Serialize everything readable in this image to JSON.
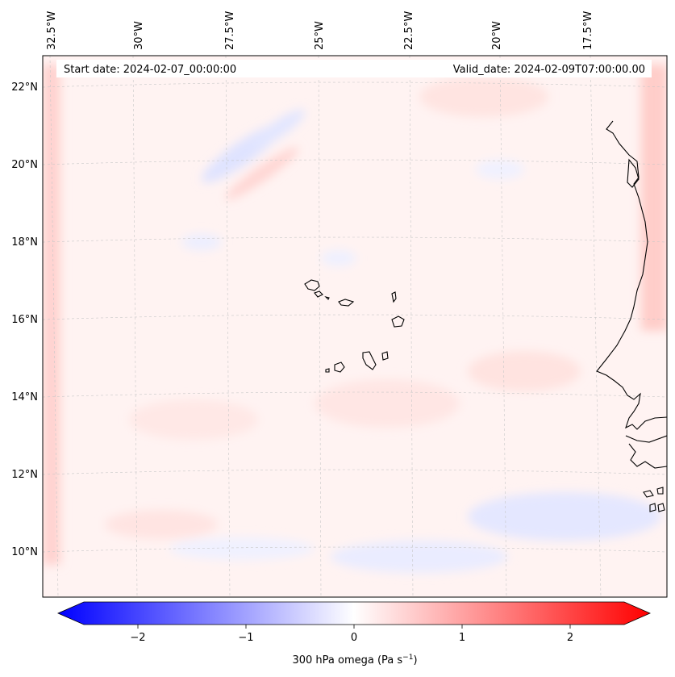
{
  "header": {
    "start_date": "Start date: 2024-02-07_00:00:00",
    "valid_date": "Valid_date: 2024-02-09T07:00:00.00"
  },
  "axes": {
    "longitude_labels": [
      "32.5°W",
      "30°W",
      "27.5°W",
      "25°W",
      "22.5°W",
      "20°W",
      "17.5°W"
    ],
    "latitude_labels": [
      "22°N",
      "20°N",
      "18°N",
      "16°N",
      "14°N",
      "12°N",
      "10°N"
    ]
  },
  "colorbar": {
    "label_main": "300 hPa omega (Pa s",
    "label_exp": "−1",
    "label_close": ")",
    "ticks": [
      "−2",
      "−1",
      "0",
      "1",
      "2"
    ],
    "min_color": "#0000ff",
    "mid_color": "#ffffff",
    "max_color": "#ff0000"
  },
  "chart_data": {
    "type": "heatmap",
    "variable": "300 hPa omega",
    "units": "Pa s^-1",
    "colormap": "bwr",
    "value_range": [
      -2.6,
      2.6
    ],
    "extend": "both",
    "lon_range": [
      -33.0,
      -15.0
    ],
    "lat_range": [
      8.8,
      22.8
    ],
    "gridlines": true
  }
}
